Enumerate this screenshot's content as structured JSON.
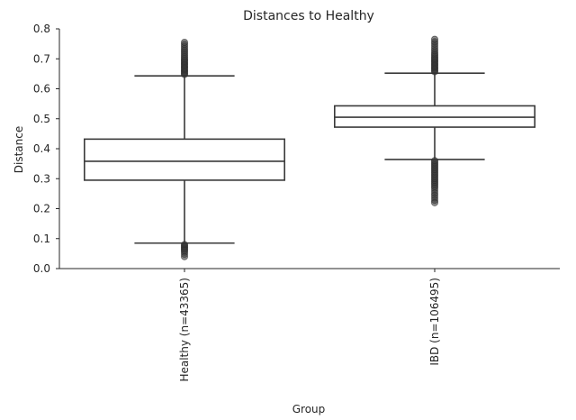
{
  "chart_data": {
    "type": "box",
    "title": "Distances to Healthy",
    "xlabel": "Group",
    "ylabel": "Distance",
    "ylim": [
      0.0,
      0.8
    ],
    "yticks": [
      "0.0",
      "0.1",
      "0.2",
      "0.3",
      "0.4",
      "0.5",
      "0.6",
      "0.7",
      "0.8"
    ],
    "grid": false,
    "categories": [
      "Healthy (n=43365)",
      "IBD (n=106495)"
    ],
    "boxes": [
      {
        "category": "Healthy (n=43365)",
        "whisker_low": 0.085,
        "q1": 0.295,
        "median": 0.358,
        "q3": 0.432,
        "whisker_high": 0.643,
        "outliers_high": [
          0.648,
          0.652,
          0.656,
          0.66,
          0.664,
          0.668,
          0.672,
          0.676,
          0.68,
          0.684,
          0.688,
          0.692,
          0.696,
          0.7,
          0.705,
          0.71,
          0.716,
          0.722,
          0.728,
          0.734,
          0.741,
          0.748,
          0.755
        ],
        "outliers_low": [
          0.08,
          0.076,
          0.072,
          0.068,
          0.064,
          0.06,
          0.055,
          0.048,
          0.04
        ]
      },
      {
        "category": "IBD (n=106495)",
        "whisker_low": 0.364,
        "q1": 0.472,
        "median": 0.505,
        "q3": 0.543,
        "whisker_high": 0.652,
        "outliers_high": [
          0.657,
          0.661,
          0.665,
          0.669,
          0.673,
          0.677,
          0.681,
          0.685,
          0.689,
          0.693,
          0.697,
          0.701,
          0.705,
          0.71,
          0.715,
          0.72,
          0.727,
          0.734,
          0.742,
          0.75,
          0.757,
          0.765
        ],
        "outliers_low": [
          0.36,
          0.355,
          0.35,
          0.345,
          0.34,
          0.335,
          0.33,
          0.325,
          0.32,
          0.315,
          0.31,
          0.305,
          0.3,
          0.295,
          0.29,
          0.285,
          0.28,
          0.274,
          0.268,
          0.26,
          0.252,
          0.244,
          0.236,
          0.228,
          0.22
        ]
      }
    ]
  }
}
